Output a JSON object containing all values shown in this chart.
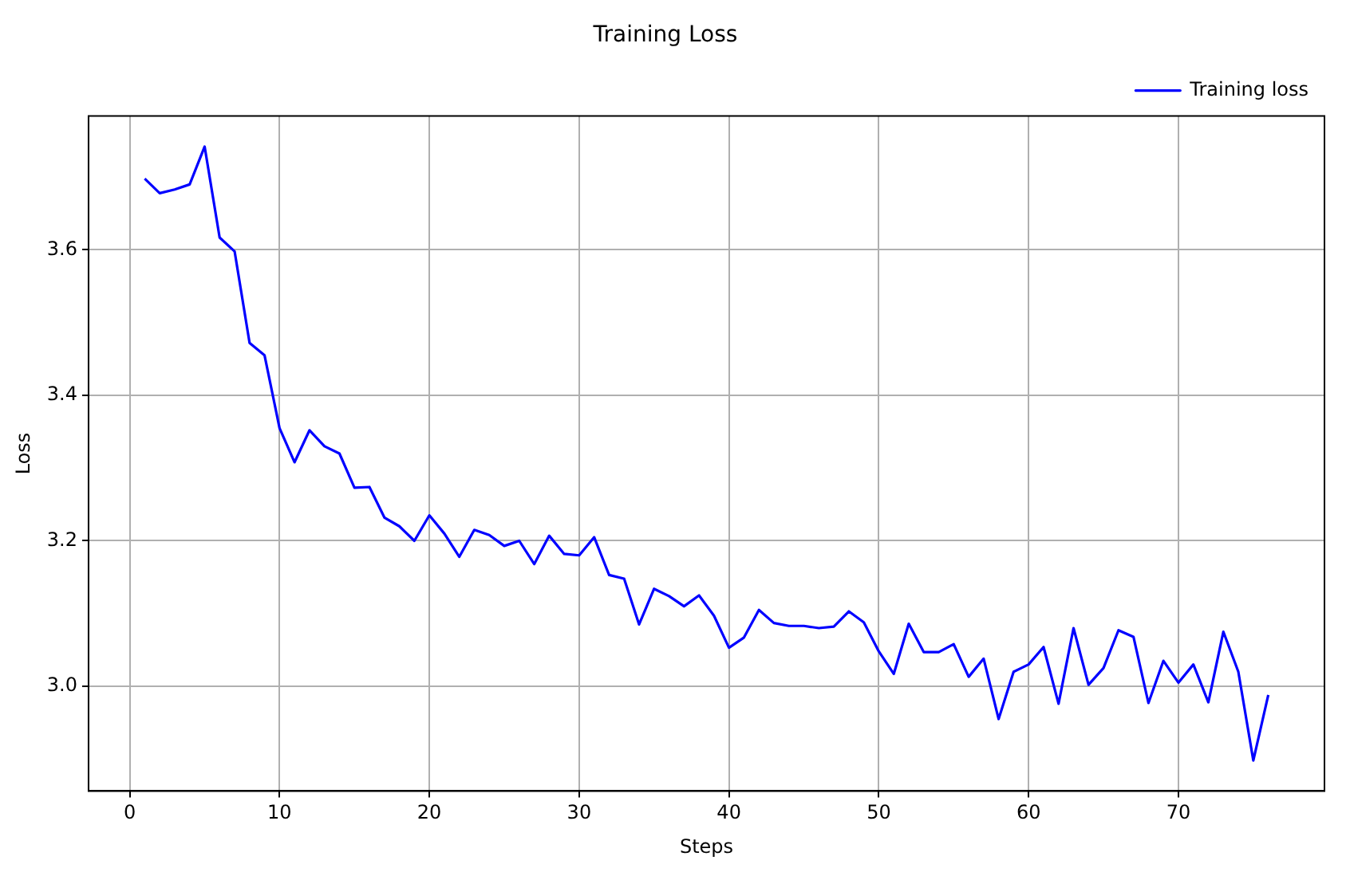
{
  "chart_data": {
    "type": "line",
    "title": "Training Loss",
    "xlabel": "Steps",
    "ylabel": "Loss",
    "x": [
      1,
      2,
      3,
      4,
      5,
      6,
      7,
      8,
      9,
      10,
      11,
      12,
      13,
      14,
      15,
      16,
      17,
      18,
      19,
      20,
      21,
      22,
      23,
      24,
      25,
      26,
      27,
      28,
      29,
      30,
      31,
      32,
      33,
      34,
      35,
      36,
      37,
      38,
      39,
      40,
      41,
      42,
      43,
      44,
      45,
      46,
      47,
      48,
      49,
      50,
      51,
      52,
      53,
      54,
      55,
      56,
      57,
      58,
      59,
      60,
      61,
      62,
      63,
      64,
      65,
      66,
      67,
      68,
      69,
      70,
      71,
      72,
      73,
      74,
      75,
      76
    ],
    "series": [
      {
        "name": "Training loss",
        "color": "#0000ff",
        "values": [
          3.698,
          3.678,
          3.683,
          3.69,
          3.742,
          3.617,
          3.598,
          3.472,
          3.455,
          3.355,
          3.308,
          3.352,
          3.33,
          3.32,
          3.273,
          3.274,
          3.232,
          3.22,
          3.2,
          3.235,
          3.21,
          3.178,
          3.215,
          3.208,
          3.193,
          3.2,
          3.168,
          3.207,
          3.182,
          3.18,
          3.205,
          3.153,
          3.148,
          3.085,
          3.134,
          3.124,
          3.11,
          3.125,
          3.097,
          3.053,
          3.067,
          3.105,
          3.087,
          3.083,
          3.083,
          3.08,
          3.082,
          3.103,
          3.088,
          3.048,
          3.017,
          3.086,
          3.047,
          3.047,
          3.058,
          3.013,
          3.038,
          2.955,
          3.02,
          3.03,
          3.054,
          2.976,
          3.08,
          3.002,
          3.025,
          3.077,
          3.068,
          2.977,
          3.035,
          3.005,
          3.03,
          2.978,
          3.075,
          3.02,
          2.898,
          2.988
        ]
      }
    ],
    "xlim": [
      -2.75,
      79.75
    ],
    "xticks": [
      0,
      10,
      20,
      30,
      40,
      50,
      60,
      70
    ],
    "ylim": [
      2.856,
      3.784
    ],
    "yticks": [
      {
        "value": 3.0,
        "label": "3.0"
      },
      {
        "value": 3.2,
        "label": "3.2"
      },
      {
        "value": 3.4,
        "label": "3.4"
      },
      {
        "value": 3.6,
        "label": "3.6"
      }
    ],
    "grid": true,
    "legend": "top right",
    "marker": "none",
    "line_style": "solid"
  }
}
